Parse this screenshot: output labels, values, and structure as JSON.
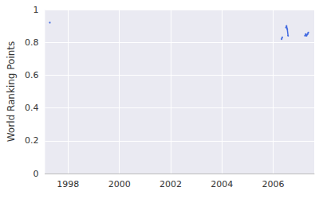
{
  "chart_data": {
    "type": "line",
    "y_label": "World Ranking Points",
    "x": [
      1997.29,
      1997.5,
      2006.33,
      2006.35,
      2006.4,
      2006.5,
      2006.52,
      2006.55,
      2006.58,
      2006.7,
      2007.24,
      2007.27,
      2007.3,
      2007.34,
      2007.37
    ],
    "series": [
      {
        "name": "World Ranking Points",
        "color": "#4169e1",
        "values": [
          0.92,
          null,
          0.82,
          0.83,
          null,
          0.89,
          0.9,
          0.88,
          0.84,
          null,
          0.84,
          0.85,
          0.84,
          0.85,
          0.86
        ]
      }
    ],
    "xlim": [
      1997.1,
      2007.6
    ],
    "xticks": [
      1998,
      2000,
      2002,
      2004,
      2006
    ],
    "ylim": [
      0,
      1
    ],
    "yticks": [
      0,
      0.2,
      0.4,
      0.6,
      0.8,
      1
    ],
    "grid": true
  }
}
